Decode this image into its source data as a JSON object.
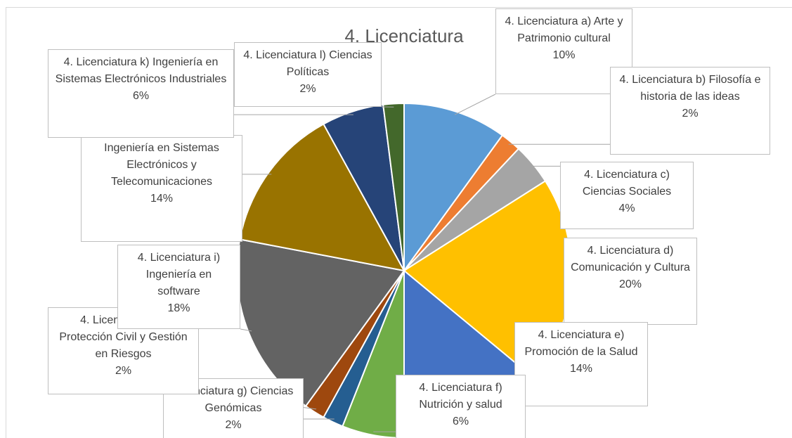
{
  "chart_data": {
    "type": "pie",
    "title": "4. Licenciatura",
    "categories": [
      "4. Licenciatura a) Arte y Patrimonio cultural",
      "4. Licenciatura b) Filosofía e historia de las ideas",
      "4. Licenciatura c) Ciencias Sociales",
      "4. Licenciatura d) Comunicación y Cultura",
      "4. Licenciatura e) Promoción de la Salud",
      "4. Licenciatura f) Nutrición y salud",
      "Licenciatura g) Ciencias Genómicas",
      "4. Licenciatura h) Protección Civil y Gestión en Riesgos",
      "4. Licenciatura i) Ingeniería en software",
      "Ingeniería en Sistemas Electrónicos y Telecomunicaciones",
      "4. Licenciatura k) Ingeniería en Sistemas Electrónicos Industriales",
      "4. Licenciatura l) Ciencias Políticas"
    ],
    "values": [
      10,
      2,
      4,
      20,
      14,
      6,
      2,
      2,
      18,
      14,
      6,
      2
    ],
    "value_labels": [
      "10%",
      "2%",
      "4%",
      "20%",
      "14%",
      "6%",
      "2%",
      "2%",
      "18%",
      "14%",
      "6%",
      "2%"
    ],
    "colors": [
      "#5b9bd5",
      "#ed7d31",
      "#a5a5a5",
      "#ffc000",
      "#4472c4",
      "#70ad47",
      "#255e91",
      "#9e480e",
      "#636363",
      "#997300",
      "#264478",
      "#43682b"
    ]
  }
}
